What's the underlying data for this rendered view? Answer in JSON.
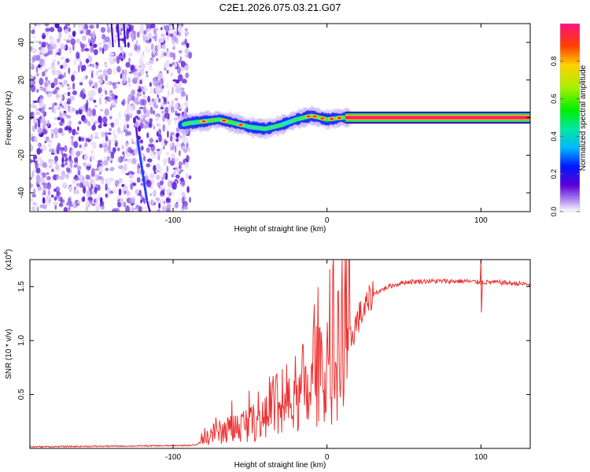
{
  "title": "C2E1.2026.075.03.21.G07",
  "chart_data": [
    {
      "type": "heatmap",
      "xlabel": "Height of straight line (km)",
      "ylabel": "Frequency (Hz)",
      "xlim": [
        -193,
        132
      ],
      "ylim": [
        -50,
        50
      ],
      "xticks": [
        -100,
        0,
        100
      ],
      "xtick_labels": [
        "-100",
        "0",
        "100"
      ],
      "yticks": [
        -40,
        -20,
        0,
        20,
        40
      ],
      "ytick_labels": [
        "-40",
        "-20",
        "0",
        "20",
        "40"
      ],
      "colorbar": {
        "label": "Normalized spectral amplitude",
        "range": [
          0,
          1
        ],
        "ticks": [
          0.0,
          0.2,
          0.4,
          0.6,
          0.8
        ],
        "tick_labels": [
          "0.0",
          "0.2",
          "0.4",
          "0.6",
          "0.8"
        ]
      },
      "signal_track": {
        "x": [
          -95,
          -90,
          -80,
          -70,
          -60,
          -50,
          -40,
          -30,
          -20,
          -10,
          0,
          10,
          20,
          40,
          60,
          80,
          100,
          132
        ],
        "y": [
          -4,
          -3,
          -2,
          -1,
          -3,
          -5,
          -6,
          -4,
          -1,
          1,
          -1,
          0,
          0,
          0,
          0,
          0,
          0,
          0
        ]
      },
      "noise_region_x": [
        -193,
        -92
      ]
    },
    {
      "type": "line",
      "xlabel": "Height of straight line (km)",
      "ylabel": "SNR (10 * v/v)",
      "multiplier_label": "(x10",
      "multiplier_exp": "4",
      "multiplier_close": ")",
      "xlim": [
        -193,
        132
      ],
      "ylim": [
        0,
        17500
      ],
      "xticks": [
        -100,
        0,
        100
      ],
      "xtick_labels": [
        "-100",
        "0",
        "100"
      ],
      "yticks": [
        5000,
        10000,
        15000
      ],
      "ytick_labels": [
        "0.5",
        "1.0",
        "1.5"
      ],
      "series": [
        {
          "name": "SNR",
          "color": "#ee3030",
          "x": [
            -193,
            -150,
            -100,
            -85,
            -80,
            -75,
            -70,
            -65,
            -60,
            -55,
            -50,
            -45,
            -40,
            -35,
            -30,
            -25,
            -20,
            -15,
            -10,
            -5,
            0,
            5,
            10,
            15,
            20,
            25,
            30,
            40,
            50,
            60,
            70,
            80,
            90,
            100,
            110,
            120,
            132
          ],
          "y": [
            150,
            200,
            250,
            300,
            800,
            1300,
            1500,
            1600,
            1900,
            2200,
            2300,
            2600,
            2700,
            2900,
            3100,
            3600,
            3900,
            4500,
            5200,
            6300,
            7200,
            8300,
            9000,
            10000,
            12000,
            13000,
            14300,
            15000,
            15400,
            15500,
            15500,
            15500,
            15500,
            15400,
            15400,
            15300,
            15200
          ]
        }
      ],
      "spikes": [
        {
          "x": 100,
          "y": 17500
        },
        {
          "x": 100,
          "y": 12600
        }
      ]
    }
  ]
}
